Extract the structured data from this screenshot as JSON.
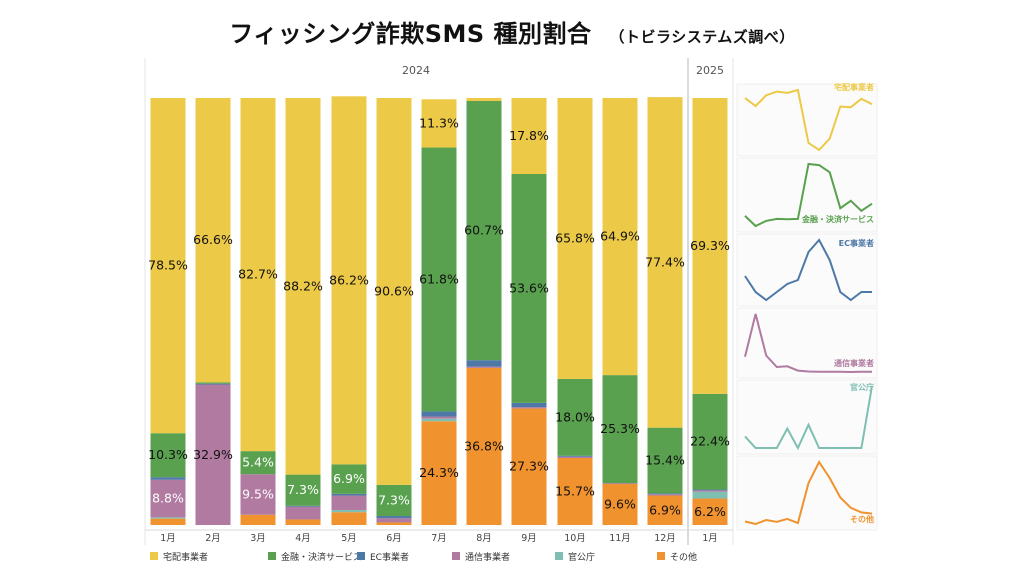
{
  "title": {
    "main": "フィッシング詐欺SMS 種別割合",
    "sub": "（トビラシステムズ調べ）"
  },
  "chart_data": {
    "type": "bar",
    "stacked": true,
    "years": [
      {
        "label": "2024",
        "count": 12
      },
      {
        "label": "2025",
        "count": 1
      }
    ],
    "categories": [
      "1月",
      "2月",
      "3月",
      "4月",
      "5月",
      "6月",
      "7月",
      "8月",
      "9月",
      "10月",
      "11月",
      "12月",
      "1月"
    ],
    "ylim": [
      0,
      100
    ],
    "series": [
      {
        "name": "その他",
        "color": "#f0922e",
        "values": [
          1.5,
          0,
          2.4,
          1.3,
          3.0,
          0.6,
          24.3,
          36.8,
          27.3,
          15.7,
          9.6,
          6.9,
          6.2
        ],
        "labels": [
          "",
          "",
          "",
          "",
          "",
          "",
          "24.3%",
          "36.8%",
          "27.3%",
          "15.7%",
          "9.6%",
          "6.9%",
          "6.2%"
        ]
      },
      {
        "name": "官公庁",
        "color": "#7fbfb2",
        "values": [
          0.3,
          0,
          0,
          0,
          0.5,
          0,
          0.6,
          0,
          0,
          0,
          0,
          0,
          1.6
        ],
        "labels": [
          "",
          "",
          "",
          "",
          "",
          "",
          "",
          "",
          "",
          "",
          "",
          "",
          ""
        ]
      },
      {
        "name": "通信事業者",
        "color": "#b07aa1",
        "values": [
          8.8,
          32.9,
          9.5,
          3.0,
          3.4,
          1.0,
          0.5,
          0.3,
          0.3,
          0.3,
          0.2,
          0.3,
          0.3
        ],
        "labels": [
          "8.8%",
          "32.9%",
          "9.5%",
          "",
          "",
          "",
          "",
          "",
          "",
          "",
          "",
          "",
          ""
        ]
      },
      {
        "name": "EC事業者",
        "color": "#4e79a7",
        "values": [
          0.6,
          0.2,
          0,
          0.2,
          0.4,
          0.5,
          1.2,
          1.5,
          1.0,
          0.2,
          0,
          0.2,
          0.2
        ],
        "labels": [
          "",
          "",
          "",
          "",
          "",
          "",
          "",
          "",
          "",
          "",
          "",
          "",
          ""
        ]
      },
      {
        "name": "金融・決済サービス",
        "color": "#59a14f",
        "values": [
          10.3,
          0.3,
          5.4,
          7.3,
          6.9,
          7.3,
          61.8,
          60.7,
          53.6,
          18.0,
          25.3,
          15.4,
          22.4
        ],
        "labels": [
          "10.3%",
          "",
          "5.4%",
          "7.3%",
          "6.9%",
          "7.3%",
          "61.8%",
          "60.7%",
          "53.6%",
          "18.0%",
          "25.3%",
          "15.4%",
          "22.4%"
        ]
      },
      {
        "name": "宅配事業者",
        "color": "#edc948",
        "values": [
          78.5,
          66.6,
          82.7,
          88.2,
          86.2,
          90.6,
          11.3,
          0.7,
          17.8,
          65.8,
          64.9,
          77.4,
          69.3
        ],
        "labels": [
          "78.5%",
          "66.6%",
          "82.7%",
          "88.2%",
          "86.2%",
          "90.6%",
          "11.3%",
          "",
          "17.8%",
          "65.8%",
          "64.9%",
          "77.4%",
          "69.3%"
        ]
      }
    ],
    "legend": [
      "宅配事業者",
      "金融・決済サービス",
      "EC事業者",
      "通信事業者",
      "官公庁",
      "その他"
    ],
    "legend_position": "bottom",
    "sparklines": [
      {
        "label": "宅配事業者",
        "color": "#edc948"
      },
      {
        "label": "金融・決済サービス",
        "color": "#59a14f"
      },
      {
        "label": "EC事業者",
        "color": "#4e79a7"
      },
      {
        "label": "通信事業者",
        "color": "#b07aa1"
      },
      {
        "label": "官公庁",
        "color": "#7fbfb2"
      },
      {
        "label": "その他",
        "color": "#f0922e"
      }
    ]
  }
}
